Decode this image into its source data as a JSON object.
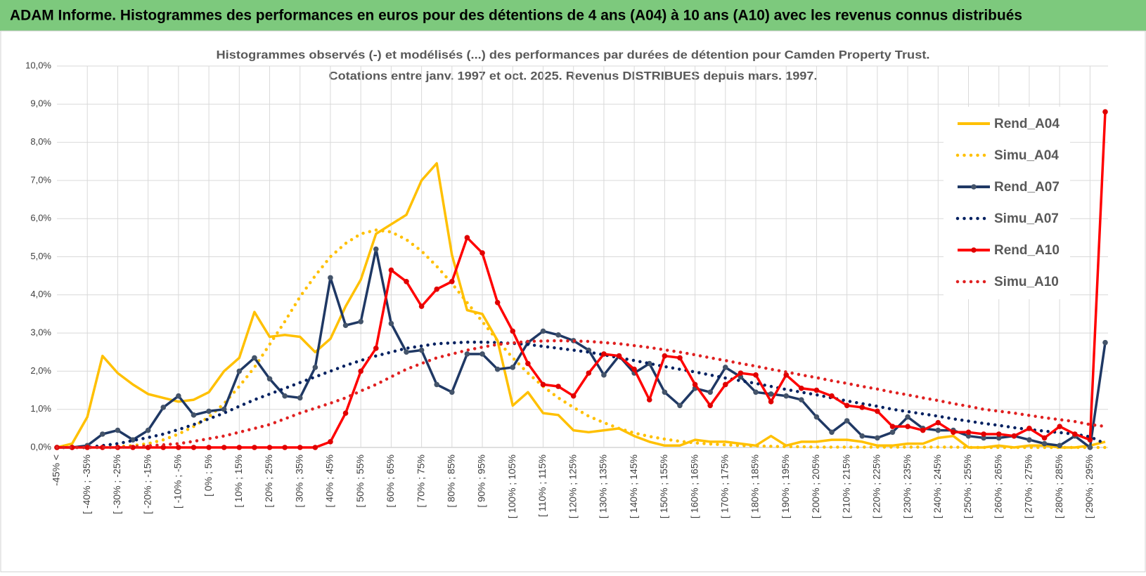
{
  "header": {
    "title": "ADAM Informe. Histogrammes des performances en euros pour des détentions de 4 ans (A04) à 10 ans (A10) avec les revenus connus distribués"
  },
  "chart_data": {
    "type": "line",
    "title": "Histogrammes observés (-) et modélisés (...) des performances par durées de détention pour Camden Property Trust.",
    "subtitle": "Cotations entre janv. 1997 et oct. 2025.  Revenus DISTRIBUES depuis mars. 1997.",
    "categories": [
      "-45% <",
      null,
      "[ -40% ; -35%",
      null,
      "[ -30% ; -25%",
      null,
      "[ -20% ; -15%",
      null,
      "[ -10% ; -5%",
      null,
      "[ 0% ; 5%",
      null,
      "[ 10% ; 15%",
      null,
      "[ 20% ; 25%",
      null,
      "[ 30% ; 35%",
      null,
      "[ 40% ; 45%",
      null,
      "[ 50% ; 55%",
      null,
      "[ 60% ; 65%",
      null,
      "[ 70% ; 75%",
      null,
      "[ 80% ; 85%",
      null,
      "[ 90% ; 95%",
      null,
      "[ 100% ; 105%",
      null,
      "[ 110% ; 115%",
      null,
      "[ 120% ; 125%",
      null,
      "[ 130% ; 135%",
      null,
      "[ 140% ; 145%",
      null,
      "[ 150% ; 155%",
      null,
      "[ 160% ; 165%",
      null,
      "[ 170% ; 175%",
      null,
      "[ 180% ; 185%",
      null,
      "[ 190% ; 195%",
      null,
      "[ 200% ; 205%",
      null,
      "[ 210% ; 215%",
      null,
      "[ 220% ; 225%",
      null,
      "[ 230% ; 235%",
      null,
      "[ 240% ; 245%",
      null,
      "[ 250% ; 255%",
      null,
      "[ 260% ; 265%",
      null,
      "[ 270% ; 275%",
      null,
      "[ 280% ; 285%",
      null,
      "[ 290% ; 295%",
      null
    ],
    "series": [
      {
        "name": "Rend_A04",
        "color": "#FFC000",
        "style": "solid",
        "marker": false,
        "values": [
          0,
          0.1,
          0.8,
          2.4,
          1.95,
          1.65,
          1.4,
          1.3,
          1.2,
          1.25,
          1.45,
          2.0,
          2.35,
          3.55,
          2.9,
          2.95,
          2.9,
          2.5,
          2.85,
          3.7,
          4.4,
          5.6,
          5.85,
          6.1,
          7.0,
          7.45,
          5.05,
          3.6,
          3.5,
          2.8,
          1.1,
          1.45,
          0.9,
          0.85,
          0.45,
          0.4,
          0.45,
          0.5,
          0.3,
          0.15,
          0.05,
          0.05,
          0.2,
          0.15,
          0.15,
          0.1,
          0.05,
          0.3,
          0.05,
          0.15,
          0.15,
          0.2,
          0.2,
          0.15,
          0.05,
          0.05,
          0.1,
          0.1,
          0.25,
          0.3,
          0,
          0,
          0.05,
          0,
          0.05,
          0.05,
          0,
          0,
          0.05,
          0.15
        ]
      },
      {
        "name": "Simu_A04",
        "color": "#FFC000",
        "style": "dotted",
        "marker": false,
        "values": [
          0,
          0,
          0,
          0,
          0.02,
          0.05,
          0.1,
          0.2,
          0.35,
          0.55,
          0.8,
          1.15,
          1.6,
          2.1,
          2.7,
          3.3,
          3.95,
          4.5,
          5.0,
          5.35,
          5.6,
          5.7,
          5.65,
          5.45,
          5.15,
          4.75,
          4.3,
          3.8,
          3.3,
          2.8,
          2.35,
          1.95,
          1.6,
          1.3,
          1.05,
          0.82,
          0.65,
          0.5,
          0.38,
          0.29,
          0.22,
          0.16,
          0.12,
          0.09,
          0.07,
          0.05,
          0.04,
          0.03,
          0.02,
          0.02,
          0.01,
          0.01,
          0.01,
          0.01,
          0.01,
          0.01,
          0.01,
          0.01,
          0.01,
          0.01,
          0,
          0,
          0,
          0,
          0,
          0,
          0,
          0,
          0,
          0
        ]
      },
      {
        "name": "Rend_A07",
        "color": "#1F3864",
        "style": "solid",
        "marker": true,
        "marker_color": "#44546A",
        "values": [
          0,
          0,
          0.05,
          0.35,
          0.45,
          0.2,
          0.45,
          1.05,
          1.35,
          0.85,
          0.95,
          1.0,
          2.0,
          2.35,
          1.8,
          1.35,
          1.3,
          2.1,
          4.45,
          3.2,
          3.3,
          5.2,
          3.25,
          2.5,
          2.55,
          1.65,
          1.45,
          2.45,
          2.45,
          2.05,
          2.1,
          2.75,
          3.05,
          2.95,
          2.8,
          2.55,
          1.9,
          2.4,
          1.95,
          2.2,
          1.45,
          1.1,
          1.55,
          1.45,
          2.1,
          1.85,
          1.45,
          1.4,
          1.35,
          1.25,
          0.8,
          0.4,
          0.7,
          0.3,
          0.25,
          0.4,
          0.8,
          0.5,
          0.45,
          0.45,
          0.3,
          0.25,
          0.25,
          0.3,
          0.2,
          0.1,
          0.05,
          0.3,
          0,
          2.75
        ]
      },
      {
        "name": "Simu_A07",
        "color": "#002060",
        "style": "dotted",
        "marker": false,
        "values": [
          0,
          0,
          0,
          0.05,
          0.1,
          0.18,
          0.26,
          0.35,
          0.47,
          0.6,
          0.75,
          0.9,
          1.08,
          1.25,
          1.4,
          1.55,
          1.7,
          1.85,
          2.0,
          2.15,
          2.28,
          2.4,
          2.5,
          2.6,
          2.66,
          2.72,
          2.74,
          2.76,
          2.76,
          2.75,
          2.73,
          2.7,
          2.65,
          2.6,
          2.55,
          2.5,
          2.43,
          2.35,
          2.28,
          2.2,
          2.12,
          2.05,
          1.98,
          1.9,
          1.82,
          1.75,
          1.68,
          1.6,
          1.52,
          1.45,
          1.38,
          1.3,
          1.22,
          1.15,
          1.08,
          1.0,
          0.94,
          0.88,
          0.82,
          0.75,
          0.69,
          0.63,
          0.58,
          0.52,
          0.47,
          0.43,
          0.39,
          0.35,
          0.28,
          0.1
        ]
      },
      {
        "name": "Rend_A10",
        "color": "#FF0000",
        "style": "solid",
        "marker": true,
        "marker_color": "#E00000",
        "values": [
          0,
          0,
          0,
          0,
          0,
          0,
          0,
          0,
          0,
          0,
          0,
          0,
          0,
          0,
          0,
          0,
          0,
          0,
          0.15,
          0.9,
          2.0,
          2.6,
          4.65,
          4.35,
          3.7,
          4.15,
          4.35,
          5.5,
          5.1,
          3.8,
          3.05,
          2.2,
          1.65,
          1.6,
          1.35,
          1.95,
          2.45,
          2.4,
          2.05,
          1.25,
          2.4,
          2.35,
          1.65,
          1.1,
          1.65,
          1.95,
          1.9,
          1.2,
          1.9,
          1.55,
          1.5,
          1.35,
          1.1,
          1.05,
          0.95,
          0.55,
          0.55,
          0.45,
          0.65,
          0.4,
          0.4,
          0.35,
          0.35,
          0.3,
          0.5,
          0.25,
          0.55,
          0.35,
          0.2,
          8.8
        ]
      },
      {
        "name": "Simu_A10",
        "color": "#E02020",
        "style": "dotted",
        "marker": false,
        "values": [
          0,
          0,
          0,
          0,
          0,
          0.02,
          0.04,
          0.07,
          0.1,
          0.16,
          0.23,
          0.3,
          0.4,
          0.5,
          0.6,
          0.75,
          0.9,
          1.03,
          1.16,
          1.3,
          1.48,
          1.65,
          1.85,
          2.05,
          2.2,
          2.35,
          2.45,
          2.55,
          2.63,
          2.7,
          2.74,
          2.78,
          2.79,
          2.8,
          2.79,
          2.78,
          2.75,
          2.72,
          2.67,
          2.62,
          2.56,
          2.5,
          2.43,
          2.35,
          2.28,
          2.2,
          2.13,
          2.05,
          1.98,
          1.9,
          1.83,
          1.75,
          1.68,
          1.6,
          1.53,
          1.45,
          1.38,
          1.3,
          1.23,
          1.15,
          1.08,
          1.0,
          0.95,
          0.9,
          0.84,
          0.78,
          0.73,
          0.68,
          0.6,
          0.55
        ]
      }
    ],
    "ylim": [
      0,
      10
    ],
    "yticks": [
      {
        "value": 0,
        "label": "0,0%"
      },
      {
        "value": 1,
        "label": "1,0%"
      },
      {
        "value": 2,
        "label": "2,0%"
      },
      {
        "value": 3,
        "label": "3,0%"
      },
      {
        "value": 4,
        "label": "4,0%"
      },
      {
        "value": 5,
        "label": "5,0%"
      },
      {
        "value": 6,
        "label": "6,0%"
      },
      {
        "value": 7,
        "label": "7,0%"
      },
      {
        "value": 8,
        "label": "8,0%"
      },
      {
        "value": 9,
        "label": "9,0%"
      },
      {
        "value": 10,
        "label": "10,0%"
      }
    ],
    "grid": true,
    "legend": "upper right"
  }
}
